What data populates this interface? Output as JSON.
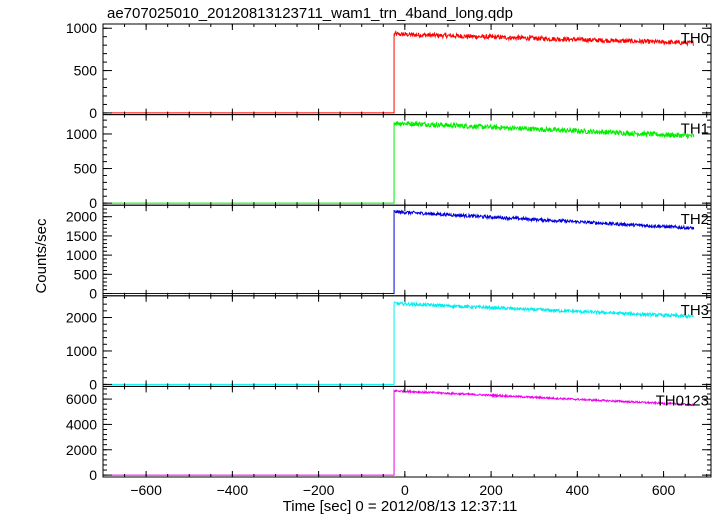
{
  "chart_data": {
    "type": "line",
    "title": "ae707025010_20120813123711_wam1_trn_4band_long.qdp",
    "xlabel": "Time [sec] 0 = 2012/08/13 12:37:11",
    "ylabel": "Counts/sec",
    "xlim": [
      -700,
      710
    ],
    "xticks": [
      -600,
      -400,
      -200,
      0,
      200,
      400,
      600
    ],
    "grid": false,
    "panels": [
      {
        "name": "TH0",
        "color": "#ff0000",
        "ylim": [
          -20,
          1050
        ],
        "yticks": [
          0,
          500,
          1000
        ],
        "pre_level": 0,
        "x_start": -680,
        "x_jump": -25,
        "x_end": 670,
        "post_start": 930,
        "post_end": 825,
        "noise": 45
      },
      {
        "name": "TH1",
        "color": "#00ee00",
        "ylim": [
          -30,
          1280
        ],
        "yticks": [
          0,
          500,
          1000
        ],
        "pre_level": 0,
        "x_start": -680,
        "x_jump": -25,
        "x_end": 670,
        "post_start": 1160,
        "post_end": 970,
        "noise": 60
      },
      {
        "name": "TH2",
        "color": "#0000dd",
        "ylim": [
          -60,
          2300
        ],
        "yticks": [
          0,
          500,
          1000,
          1500,
          2000
        ],
        "pre_level": 0,
        "x_start": -680,
        "x_jump": -25,
        "x_end": 670,
        "post_start": 2130,
        "post_end": 1700,
        "noise": 70
      },
      {
        "name": "TH3",
        "color": "#00eeee",
        "ylim": [
          -60,
          2650
        ],
        "yticks": [
          0,
          1000,
          2000
        ],
        "pre_level": 0,
        "x_start": -680,
        "x_jump": -25,
        "x_end": 670,
        "post_start": 2420,
        "post_end": 2030,
        "noise": 80
      },
      {
        "name": "TH0123",
        "color": "#ee00ee",
        "ylim": [
          -150,
          7000
        ],
        "yticks": [
          0,
          2000,
          4000,
          6000
        ],
        "pre_level": 0,
        "x_start": -680,
        "x_jump": -25,
        "x_end": 670,
        "post_start": 6650,
        "post_end": 5550,
        "noise": 120
      }
    ]
  }
}
